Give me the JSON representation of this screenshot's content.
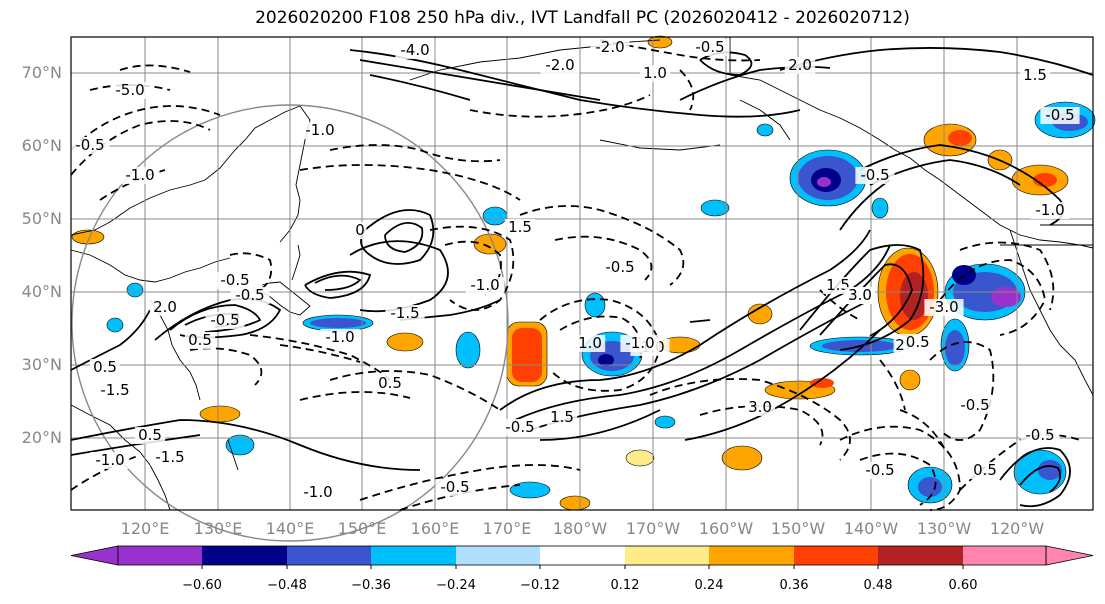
{
  "title": "2026020200 F108 250 hPa div., IVT Landfall PC (2026020412 - 2026020712)",
  "lat_labels": [
    "70°N",
    "60°N",
    "50°N",
    "40°N",
    "30°N",
    "20°N"
  ],
  "lon_labels": [
    "120°E",
    "130°E",
    "140°E",
    "150°E",
    "160°E",
    "170°E",
    "180°W",
    "170°W",
    "160°W",
    "150°W",
    "140°W",
    "130°W",
    "120°W"
  ],
  "colorbar": {
    "ticks": [
      "−0.60",
      "−0.48",
      "−0.36",
      "−0.24",
      "−0.12",
      "0.12",
      "0.24",
      "0.36",
      "0.48",
      "0.60"
    ],
    "colors": [
      "#9932cc",
      "#00008b",
      "#3a56cf",
      "#00bfff",
      "#b0e0ff",
      "#ffffff",
      "#ffeb8a",
      "#ffa500",
      "#ff4000",
      "#b22222",
      "#ff85b0"
    ]
  },
  "contour_labels": [
    "-4.0",
    "-2.0",
    "-2.0",
    "-0.5",
    "-1.0",
    "1.0",
    "2.0",
    "-5.0",
    "-0.5",
    "-1.0",
    "0",
    "-0.5",
    "-0.5",
    "2.0",
    "-1.5",
    "-0.5",
    "1.0",
    "1.5",
    "1.5",
    "3.0",
    "-1.0",
    "2.0",
    "1.5",
    "-1.5",
    "3.0",
    "-3.0",
    "-0.5",
    "-1.0",
    "0.5",
    "0.5",
    "-0.5",
    "-0.5",
    "-1.0",
    "-1.0",
    "2",
    "-1.0",
    "0.5",
    "-0.5",
    "0.5",
    "-0.5",
    "-1.5",
    "1.5",
    "-0.5",
    "-0.5",
    "-0.5",
    "-1.0",
    "-1.0",
    "0.5",
    "-0.5"
  ]
}
